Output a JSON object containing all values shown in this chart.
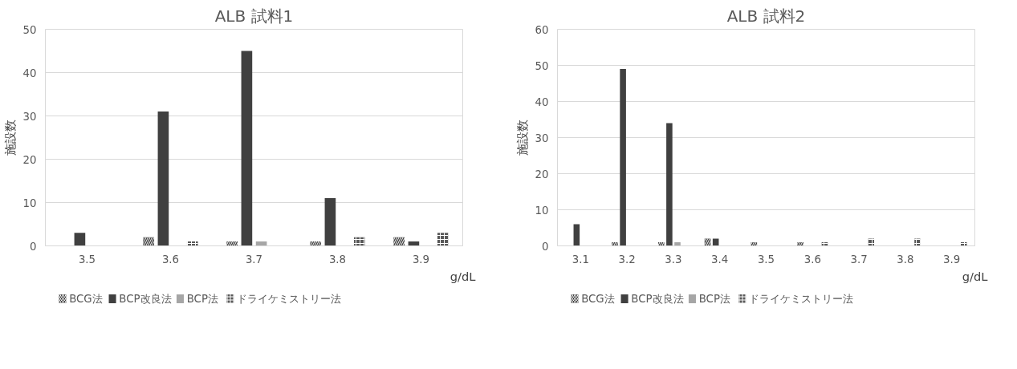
{
  "chart_data": [
    {
      "type": "bar",
      "title": "ALB 試料1",
      "xlabel": "g/dL",
      "ylabel": "施設数",
      "categories": [
        "3.5",
        "3.6",
        "3.7",
        "3.8",
        "3.9"
      ],
      "ylim": [
        0,
        50
      ],
      "yticks": [
        0,
        10,
        20,
        30,
        40,
        50
      ],
      "grid": "y",
      "legend": "bottom",
      "series": [
        {
          "name": "BCG法",
          "color": "#404040",
          "values": [
            0,
            2,
            1,
            1,
            2
          ]
        },
        {
          "name": "BCP改良法",
          "color": "#404040",
          "values": [
            3,
            31,
            45,
            11,
            1
          ]
        },
        {
          "name": "BCP法",
          "color": "#a6a6a6",
          "values": [
            0,
            0,
            1,
            0,
            0
          ]
        },
        {
          "name": "ドライケミストリー法",
          "color": "#595959",
          "values": [
            0,
            1,
            0,
            2,
            3
          ]
        }
      ]
    },
    {
      "type": "bar",
      "title": "ALB 試料2",
      "xlabel": "g/dL",
      "ylabel": "施設数",
      "categories": [
        "3.1",
        "3.2",
        "3.3",
        "3.4",
        "3.5",
        "3.6",
        "3.7",
        "3.8",
        "3.9"
      ],
      "ylim": [
        0,
        60
      ],
      "yticks": [
        0,
        10,
        20,
        30,
        40,
        50,
        60
      ],
      "grid": "y",
      "legend": "bottom",
      "series": [
        {
          "name": "BCG法",
          "color": "#404040",
          "values": [
            0,
            1,
            1,
            2,
            1,
            1,
            0,
            0,
            0
          ]
        },
        {
          "name": "BCP改良法",
          "color": "#404040",
          "values": [
            6,
            49,
            34,
            2,
            0,
            0,
            0,
            0,
            0
          ]
        },
        {
          "name": "BCP法",
          "color": "#a6a6a6",
          "values": [
            0,
            0,
            1,
            0,
            0,
            0,
            0,
            0,
            0
          ]
        },
        {
          "name": "ドライケミストリー法",
          "color": "#595959",
          "values": [
            0,
            0,
            0,
            0,
            0,
            1,
            2,
            2,
            1
          ]
        }
      ]
    }
  ]
}
